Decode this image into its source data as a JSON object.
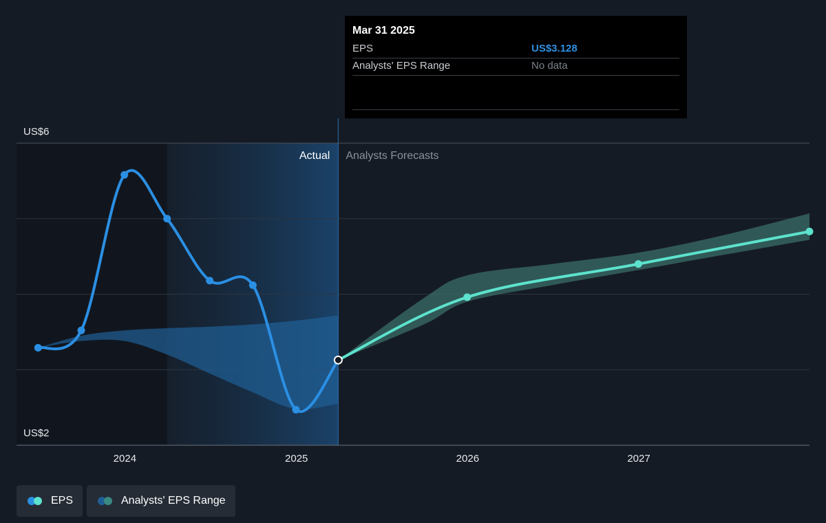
{
  "colors": {
    "background": "#151b24",
    "eps_actual": "#2b8fe3",
    "eps_forecast": "#5de2cd",
    "range_actual": "#1f5f96",
    "range_forecast": "#3a6d68",
    "tooltip_eps_value": "#2f8fe0",
    "gridline": "#2e3540"
  },
  "tooltip": {
    "date": "Mar 31 2025",
    "rows": [
      {
        "label": "EPS",
        "value": "US$3.128"
      },
      {
        "label": "Analysts' EPS Range",
        "value": "No data"
      }
    ]
  },
  "legend": {
    "items": [
      {
        "label": "EPS",
        "icon": "eps-dots-icon"
      },
      {
        "label": "Analysts' EPS Range",
        "icon": "range-dots-icon"
      }
    ]
  },
  "chart_data": {
    "type": "line",
    "y_axis_labels": [
      "US$6",
      "US$2"
    ],
    "ylim": [
      2,
      6
    ],
    "xlim": [
      "2023-05-15",
      "2027-12-31"
    ],
    "x_tick_labels": [
      "2024",
      "2025",
      "2026",
      "2027"
    ],
    "x_ticks": [
      "2024-01-01",
      "2025-01-01",
      "2026-01-01",
      "2027-01-01"
    ],
    "region_labels": {
      "actual": "Actual",
      "forecast": "Analysts Forecasts"
    },
    "divider_date": "2025-03-31",
    "highlight_start": "2024-03-31",
    "grid": true,
    "series": [
      {
        "name": "EPS",
        "kind": "actual",
        "points": [
          {
            "x": "2023-06-30",
            "y": 3.29
          },
          {
            "x": "2023-09-30",
            "y": 3.52
          },
          {
            "x": "2023-12-31",
            "y": 5.58
          },
          {
            "x": "2024-03-31",
            "y": 5.0
          },
          {
            "x": "2024-06-30",
            "y": 4.18
          },
          {
            "x": "2024-09-30",
            "y": 4.12
          },
          {
            "x": "2024-12-31",
            "y": 2.47
          },
          {
            "x": "2025-03-31",
            "y": 3.128
          }
        ]
      },
      {
        "name": "EPS",
        "kind": "forecast",
        "points": [
          {
            "x": "2025-03-31",
            "y": 3.128
          },
          {
            "x": "2025-12-31",
            "y": 3.96
          },
          {
            "x": "2026-12-31",
            "y": 4.4
          },
          {
            "x": "2027-12-31",
            "y": 4.83
          }
        ]
      }
    ],
    "range_actual": {
      "x": [
        "2023-06-30",
        "2023-09-30",
        "2023-12-31",
        "2024-03-31",
        "2024-06-30",
        "2024-09-30",
        "2024-12-31",
        "2025-03-31"
      ],
      "upper": [
        3.29,
        3.45,
        3.52,
        3.55,
        3.57,
        3.6,
        3.65,
        3.72
      ],
      "lower": [
        3.29,
        3.38,
        3.38,
        3.2,
        2.95,
        2.7,
        2.48,
        2.55
      ]
    },
    "range_forecast": {
      "x": [
        "2025-03-31",
        "2025-09-30",
        "2025-12-31",
        "2026-06-30",
        "2026-12-31",
        "2027-06-30",
        "2027-12-31"
      ],
      "upper": [
        3.128,
        3.95,
        4.25,
        4.4,
        4.55,
        4.78,
        5.07
      ],
      "lower": [
        3.128,
        3.6,
        3.9,
        4.12,
        4.32,
        4.52,
        4.72
      ]
    }
  }
}
